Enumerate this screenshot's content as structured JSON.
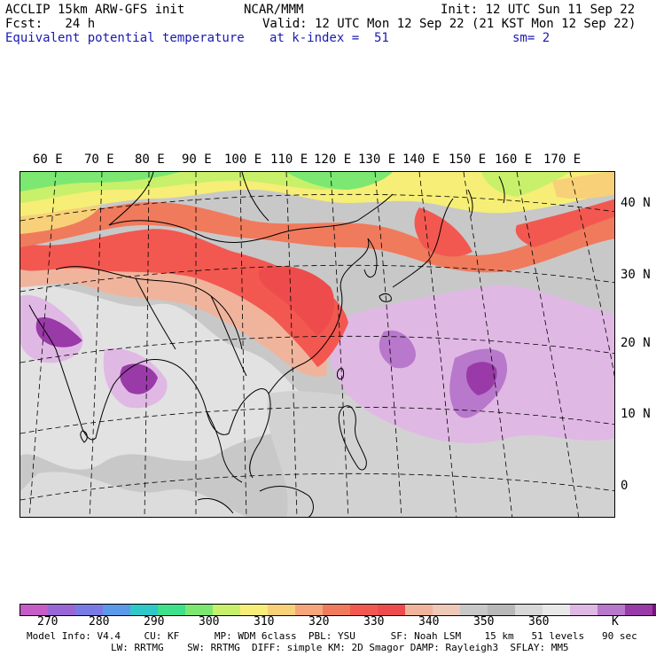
{
  "header": {
    "line1_left": "ACCLIP 15km ARW-GFS init",
    "line1_mid": "NCAR/MMM",
    "line1_right": "Init: 12 UTC Sun 11 Sep 22",
    "line2_left": "Fcst:   24 h",
    "line2_right": "Valid: 12 UTC Mon 12 Sep 22 (21 KST Mon 12 Sep 22)",
    "line3_left": "Equivalent potential temperature",
    "line3_mid": "at k-index =  51",
    "line3_right": "sm= 2"
  },
  "longitude_labels": [
    "60 E",
    "70 E",
    "80 E",
    "90 E",
    "100 E",
    "110 E",
    "120 E",
    "130 E",
    "140 E",
    "150 E",
    "160 E",
    "170 E"
  ],
  "latitude_labels": [
    "40 N",
    "30 N",
    "20 N",
    "10 N",
    "0"
  ],
  "colorbar": {
    "colors": [
      "#c65cc6",
      "#9966d6",
      "#7a7ae6",
      "#5a9ae8",
      "#2ec8c8",
      "#3ee08a",
      "#7ce872",
      "#c8f06a",
      "#f6ee76",
      "#f8d078",
      "#f6a67a",
      "#f07a5c",
      "#f25850",
      "#ee4c4c",
      "#f0b49c",
      "#eec8b8",
      "#c8c8c8",
      "#b8b8b8",
      "#d8d8d8",
      "#e8e8e8",
      "#e0b8e4",
      "#b878cc",
      "#9a3aa8",
      "#7a107a"
    ],
    "labels": [
      "270",
      "280",
      "290",
      "300",
      "310",
      "320",
      "330",
      "340",
      "350",
      "360"
    ],
    "unit": "K"
  },
  "footer": {
    "line1": "Model Info: V4.4    CU: KF      MP: WDM 6class  PBL: YSU      SF: Noah LSM    15 km   51 levels   90 sec",
    "line2": "LW: RRTMG    SW: RRTMG  DIFF: simple KM: 2D Smagor DAMP: Rayleigh3  SFLAY: MM5"
  }
}
